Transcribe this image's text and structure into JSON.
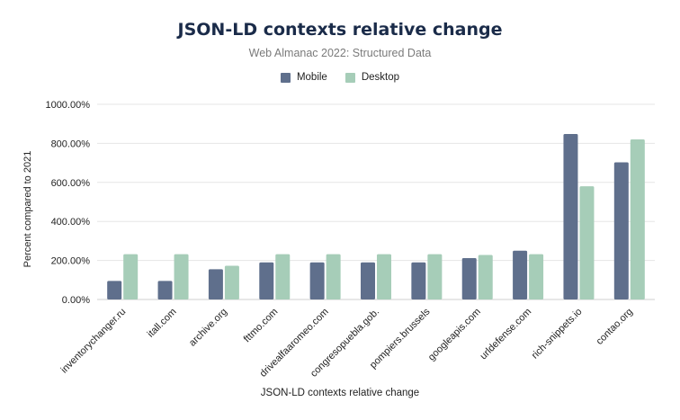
{
  "title": "JSON-LD contexts relative change",
  "subtitle": "Web Almanac 2022: Structured Data",
  "legend": {
    "mobile": "Mobile",
    "desktop": "Desktop"
  },
  "colors": {
    "mobile": "#5f6f8c",
    "desktop": "#a6cdb8",
    "grid": "#e6e6e6"
  },
  "chart_data": {
    "type": "bar",
    "title": "JSON-LD contexts relative change",
    "subtitle": "Web Almanac 2022: Structured Data",
    "xlabel": "JSON-LD contexts relative change",
    "ylabel": "Percent compared to 2021",
    "ylim": [
      0,
      1000
    ],
    "yticks": [
      "0.00%",
      "200.00%",
      "400.00%",
      "600.00%",
      "800.00%",
      "1000.00%"
    ],
    "grid": true,
    "legend_position": "top-center",
    "categories": [
      "inventorychanger.ru",
      "itall.com",
      "archive.org",
      "fttmo.com",
      "drivealfaaromeo.com",
      "congresopuebla.gob.",
      "pompiers.brussels",
      "googleapis.com",
      "urldefense.com",
      "rich-snippets.io",
      "contao.org"
    ],
    "series": [
      {
        "name": "Mobile",
        "values": [
          95,
          95,
          155,
          190,
          190,
          190,
          190,
          212,
          250,
          848,
          703
        ]
      },
      {
        "name": "Desktop",
        "values": [
          232,
          232,
          173,
          232,
          232,
          232,
          232,
          228,
          232,
          580,
          820
        ]
      }
    ]
  }
}
